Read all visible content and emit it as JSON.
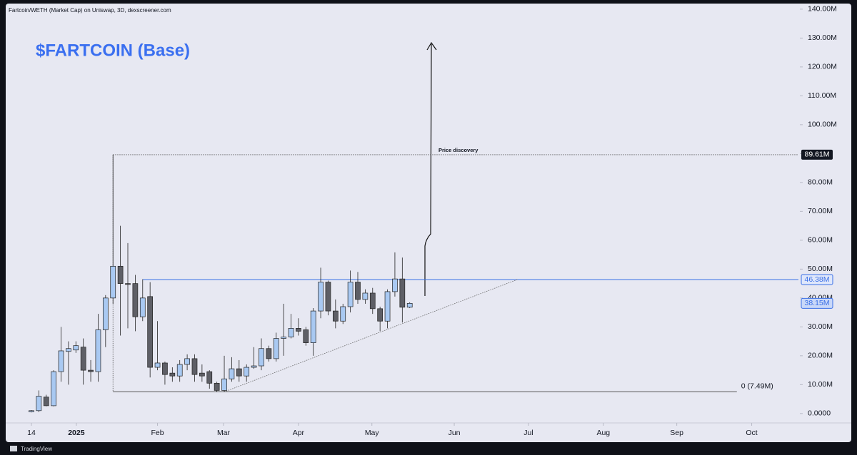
{
  "chart_data": {
    "type": "candlestick",
    "header": "Fartcoin/WETH (Market Cap) on Uniswap, 3D, dexscreener.com",
    "title": "$FARTCOIN (Base)",
    "annotation": "Price discovery",
    "footer": "TradingView",
    "up_color": "#a9c9f2",
    "down_color": "#5e5f66",
    "open": [
      0.6,
      1,
      5.7,
      2.7,
      14.5,
      21.5,
      22,
      23,
      15,
      14.5,
      29,
      40,
      51,
      45,
      45,
      33.5,
      40.5,
      16,
      17.5,
      14,
      13,
      17,
      19,
      14,
      14.5,
      10.5,
      8,
      12,
      15.5,
      13,
      16,
      16.5,
      22.5,
      19,
      26,
      26.5,
      29.5,
      29,
      24.5,
      35.5,
      45.5,
      35.5,
      32,
      37,
      45.5,
      39.5,
      41.7,
      36.3,
      32,
      42.2,
      46.6,
      36.8
    ],
    "high": [
      1.2,
      8,
      6.5,
      15,
      30,
      25,
      25,
      26,
      18.5,
      34.5,
      41,
      89.61,
      65,
      59,
      48,
      46.5,
      45.5,
      32,
      18,
      16,
      18.5,
      20.5,
      20.5,
      17,
      15,
      11,
      20,
      19.5,
      18.5,
      17,
      23,
      26,
      23.5,
      28,
      38,
      34.5,
      33,
      30,
      36.5,
      50.5,
      46,
      39.5,
      38,
      49.5,
      49,
      43,
      43.5,
      37,
      43,
      55.8,
      54,
      38.5
    ],
    "low": [
      0.4,
      0.5,
      2.5,
      2.5,
      11,
      10,
      21,
      10,
      11,
      11,
      23,
      38,
      27,
      29.5,
      28.5,
      32,
      12.5,
      15,
      10,
      11,
      11,
      15,
      11,
      11,
      8.6,
      7.49,
      7.5,
      11,
      11,
      11,
      15.5,
      15,
      18,
      18,
      20,
      26,
      27,
      23.5,
      20,
      33,
      34,
      29.5,
      31,
      35,
      38,
      38,
      34.5,
      28.5,
      29.5,
      40.5,
      31.5,
      36.5
    ],
    "close": [
      1,
      6,
      2.7,
      14.5,
      21.7,
      22.5,
      23.5,
      15,
      14.5,
      29,
      40,
      51,
      45,
      44.7,
      33.5,
      40,
      16,
      17.5,
      13.5,
      13,
      17,
      19,
      13.5,
      13,
      10.5,
      8,
      12,
      15.5,
      13,
      16,
      16.5,
      22.5,
      19,
      26,
      26.5,
      29.5,
      28.5,
      24.5,
      35.5,
      45.5,
      35.5,
      32,
      37,
      45.5,
      39.5,
      41.7,
      36.3,
      32,
      42.2,
      46.6,
      36.8,
      38.15
    ],
    "xlim": [
      -3.27,
      103.4
    ],
    "xticks": [
      {
        "value": 0,
        "label": "14"
      },
      {
        "value": 6.06,
        "label": "2025"
      },
      {
        "value": 17,
        "label": "Feb"
      },
      {
        "value": 25.9,
        "label": "Mar"
      },
      {
        "value": 36,
        "label": "Apr"
      },
      {
        "value": 45.9,
        "label": "May"
      },
      {
        "value": 57,
        "label": "Jun"
      },
      {
        "value": 67,
        "label": "Jul"
      },
      {
        "value": 77.1,
        "label": "Aug"
      },
      {
        "value": 87,
        "label": "Sep"
      },
      {
        "value": 97.1,
        "label": "Oct"
      }
    ],
    "ylim": [
      -3,
      141.2
    ],
    "yticks": [
      {
        "value": 0,
        "label": "0.0000"
      },
      {
        "value": 10,
        "label": "10.00M"
      },
      {
        "value": 20,
        "label": "20.00M"
      },
      {
        "value": 30,
        "label": "30.00M"
      },
      {
        "value": 40,
        "label": "40.00M"
      },
      {
        "value": 50,
        "label": "50.00M"
      },
      {
        "value": 60,
        "label": "60.00M"
      },
      {
        "value": 70,
        "label": "70.00M"
      },
      {
        "value": 80,
        "label": "80.00M"
      },
      {
        "value": 90,
        "label": "90.00M"
      },
      {
        "value": 100,
        "label": "100.00M"
      },
      {
        "value": 110,
        "label": "110.00M"
      },
      {
        "value": 120,
        "label": "120.00M"
      },
      {
        "value": 130,
        "label": "130.00M"
      },
      {
        "value": 140,
        "label": "140.00M"
      }
    ],
    "levels": [
      {
        "value": 89.61,
        "label": "89.61M",
        "x": [
          11,
          103.4
        ],
        "style": "dotted",
        "color": "#555555",
        "badge": "axis"
      },
      {
        "value": 46.38,
        "label": "46.38M",
        "x": [
          15,
          103.4
        ],
        "style": "solid",
        "color": "#3a6fe6",
        "badge": "axis"
      },
      {
        "value": 7.49,
        "label": "0 (7.49M)",
        "x": [
          11,
          95.1
        ],
        "style": "solid",
        "color": "#555555",
        "badge": "end"
      }
    ],
    "last_price": {
      "value": 38.15,
      "label": "38.15M",
      "color": "#3a6fe6"
    },
    "trendline": {
      "x": [
        26,
        65.5
      ],
      "values": [
        7.5,
        46.38
      ]
    }
  }
}
